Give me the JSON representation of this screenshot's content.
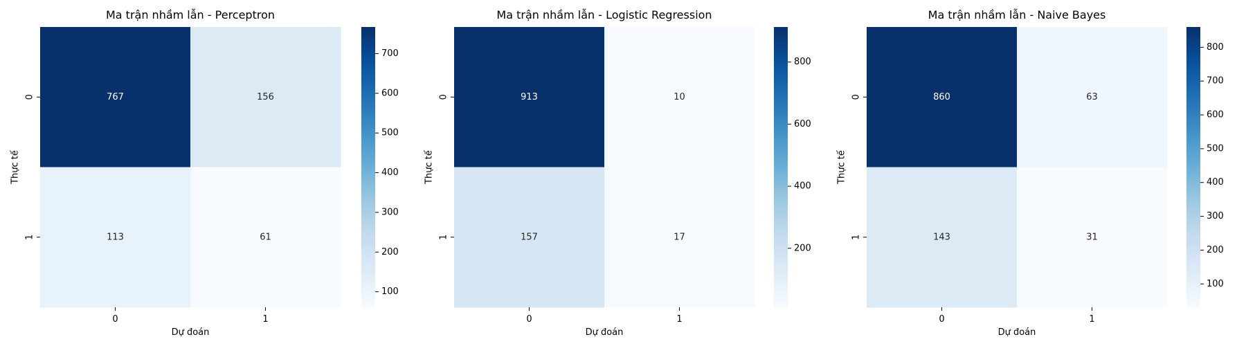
{
  "chart_data": [
    {
      "type": "heatmap",
      "title": "Ma trận nhầm lẫn - Perceptron",
      "xlabel": "Dự đoán",
      "ylabel": "Thực tế",
      "x_categories": [
        "0",
        "1"
      ],
      "y_categories": [
        "0",
        "1"
      ],
      "values": [
        [
          767,
          156
        ],
        [
          113,
          61
        ]
      ],
      "colormap": "Blues",
      "colorbar_range": [
        61,
        767
      ],
      "colorbar_ticks": [
        100,
        200,
        300,
        400,
        500,
        600,
        700
      ]
    },
    {
      "type": "heatmap",
      "title": "Ma trận nhầm lẫn - Logistic Regression",
      "xlabel": "Dự đoán",
      "ylabel": "Thực tế",
      "x_categories": [
        "0",
        "1"
      ],
      "y_categories": [
        "0",
        "1"
      ],
      "values": [
        [
          913,
          10
        ],
        [
          157,
          17
        ]
      ],
      "colormap": "Blues",
      "colorbar_range": [
        10,
        913
      ],
      "colorbar_ticks": [
        200,
        400,
        600,
        800
      ]
    },
    {
      "type": "heatmap",
      "title": "Ma trận nhầm lẫn - Naive Bayes",
      "xlabel": "Dự đoán",
      "ylabel": "Thực tế",
      "x_categories": [
        "0",
        "1"
      ],
      "y_categories": [
        "0",
        "1"
      ],
      "values": [
        [
          860,
          63
        ],
        [
          143,
          31
        ]
      ],
      "colormap": "Blues",
      "colorbar_range": [
        31,
        860
      ],
      "colorbar_ticks": [
        100,
        200,
        300,
        400,
        500,
        600,
        700,
        800
      ]
    }
  ]
}
